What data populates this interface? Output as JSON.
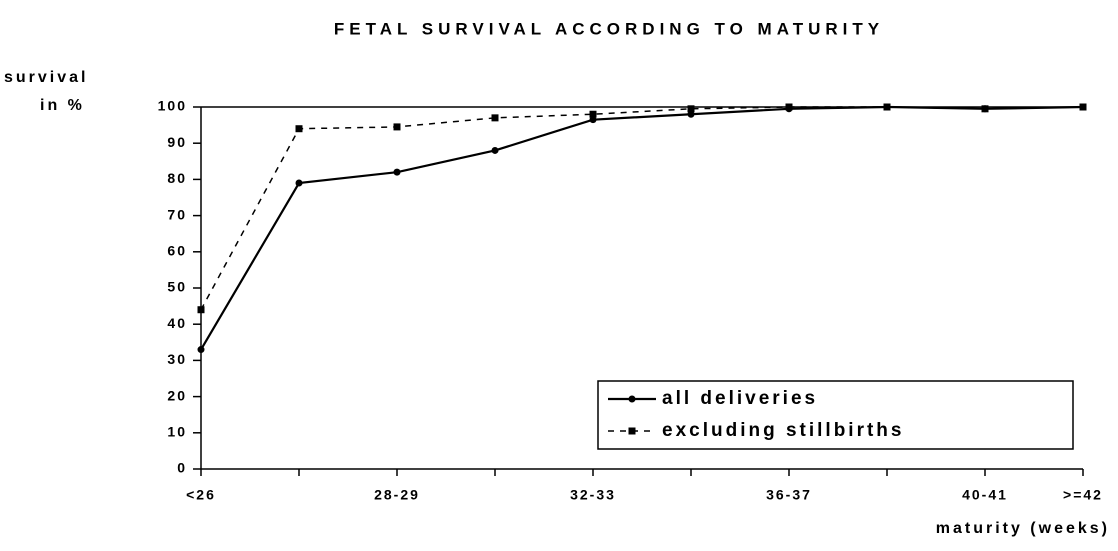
{
  "chart_data": {
    "type": "line",
    "title": "FETAL SURVIVAL ACCORDING TO MATURITY",
    "ylabel": [
      "survival",
      "in %"
    ],
    "xlabel": "maturity (weeks)",
    "categories": [
      "<26",
      null,
      "28-29",
      null,
      "32-33",
      null,
      "36-37",
      null,
      "40-41",
      ">=42"
    ],
    "series": [
      {
        "name": "all deliveries",
        "color": "#000000",
        "linestyle": "solid",
        "marker": "circle",
        "values": [
          33,
          79,
          82,
          88,
          96.5,
          98,
          99.5,
          100,
          99.5,
          100
        ]
      },
      {
        "name": "excluding stillbirths",
        "color": "#000000",
        "linestyle": "dashed",
        "marker": "square",
        "values": [
          44,
          94,
          94.5,
          97,
          98,
          99.5,
          100,
          100,
          99.5,
          100
        ]
      }
    ],
    "ylim": [
      0,
      100
    ],
    "yticks": [
      0,
      10,
      20,
      30,
      40,
      50,
      60,
      70,
      80,
      90,
      100
    ],
    "legend": "lower right"
  }
}
